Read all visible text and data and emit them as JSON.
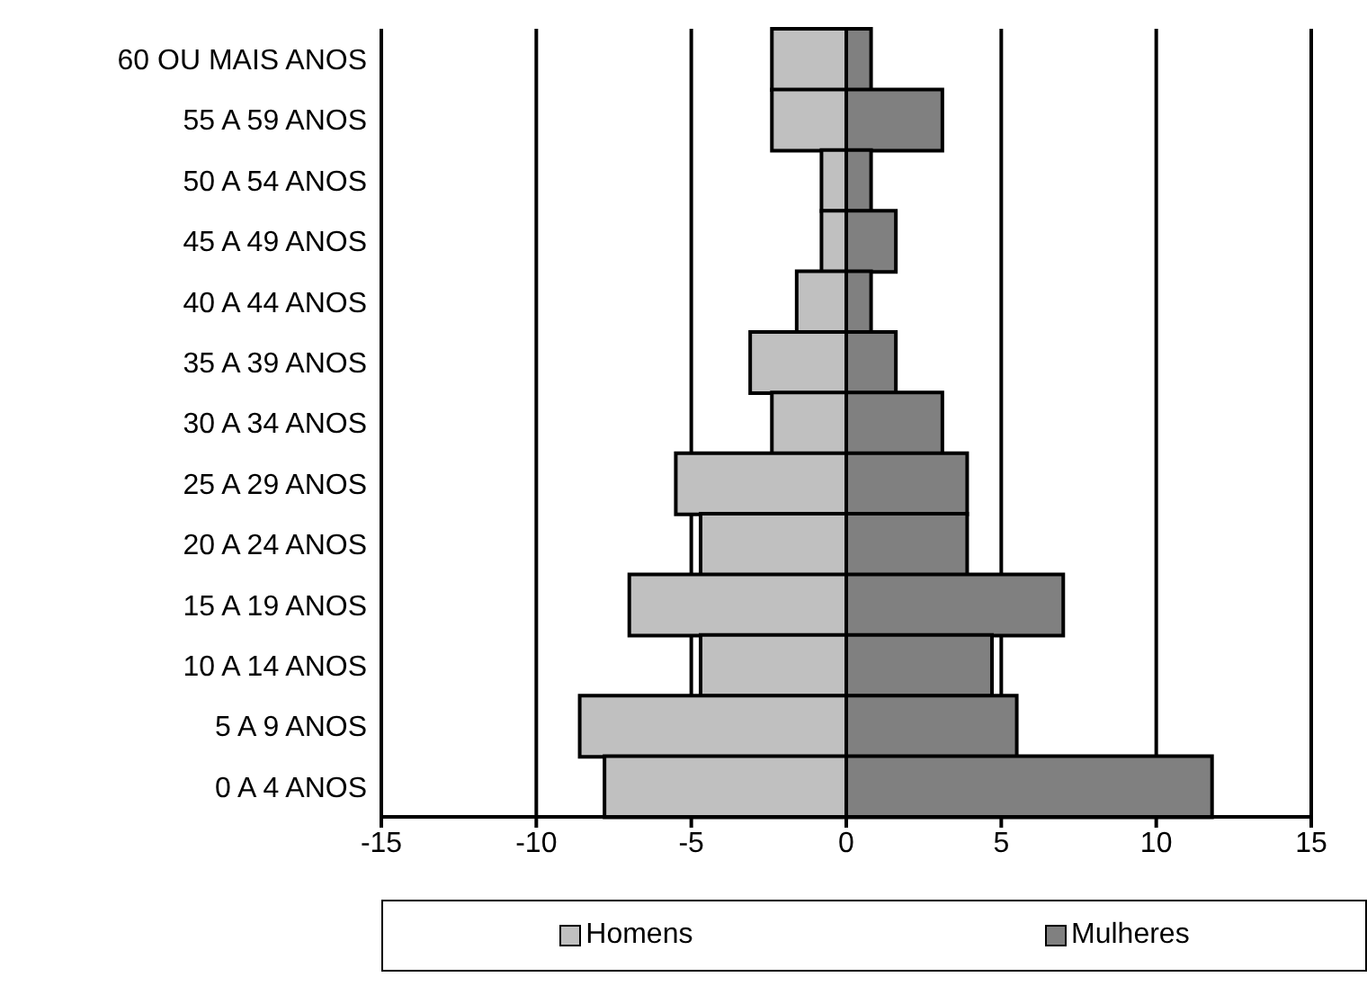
{
  "chart_data": {
    "type": "bar",
    "orientation": "horizontal",
    "categories": [
      "60 OU MAIS ANOS",
      "55 A 59 ANOS",
      "50 A 54 ANOS",
      "45 A 49 ANOS",
      "40 A 44 ANOS",
      "35 A 39 ANOS",
      "30 A 34 ANOS",
      "25 A 29 ANOS",
      "20 A 24 ANOS",
      "15 A 19 ANOS",
      "10 A 14 ANOS",
      "5 A 9 ANOS",
      "0 A 4 ANOS"
    ],
    "series": [
      {
        "name": "Homens",
        "color": "#c0c0c0",
        "values": [
          -2.4,
          -2.4,
          -0.8,
          -0.8,
          -1.6,
          -3.1,
          -2.4,
          -5.5,
          -4.7,
          -7.0,
          -4.7,
          -8.6,
          -7.8
        ]
      },
      {
        "name": "Mulheres",
        "color": "#808080",
        "values": [
          0.8,
          3.1,
          0.8,
          1.6,
          0.8,
          1.6,
          3.1,
          3.9,
          3.9,
          7.0,
          4.7,
          5.5,
          11.8
        ]
      }
    ],
    "xlim": [
      -15,
      15
    ],
    "xticks": [
      -15,
      -10,
      -5,
      0,
      5,
      10,
      15
    ],
    "grid": "x",
    "legend": "bottom",
    "stacked": true
  }
}
